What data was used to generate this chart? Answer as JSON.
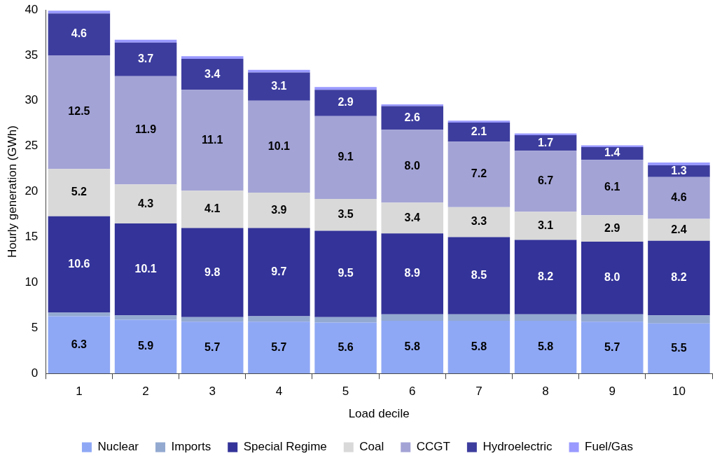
{
  "chart_data": {
    "type": "bar",
    "stacked": true,
    "xlabel": "Load decile",
    "ylabel": "Hourly generation (GWh)",
    "categories": [
      "1",
      "2",
      "3",
      "4",
      "5",
      "6",
      "7",
      "8",
      "9",
      "10"
    ],
    "ylim": [
      0,
      40
    ],
    "yticks": [
      0,
      5,
      10,
      15,
      20,
      25,
      30,
      35,
      40
    ],
    "grid": false,
    "legend": "bottom",
    "series": [
      {
        "name": "Nuclear",
        "color": "#8fa8f5",
        "values": [
          6.3,
          5.9,
          5.7,
          5.7,
          5.6,
          5.8,
          5.8,
          5.8,
          5.7,
          5.5
        ],
        "value_labels": [
          "6.3",
          "5.9",
          "5.7",
          "5.7",
          "5.6",
          "5.8",
          "5.8",
          "5.8",
          "5.7",
          "5.5"
        ]
      },
      {
        "name": "Imports",
        "color": "#93a9d0",
        "values": [
          0.4,
          0.5,
          0.5,
          0.6,
          0.6,
          0.7,
          0.7,
          0.7,
          0.8,
          0.9
        ]
      },
      {
        "name": "Special Regime",
        "color": "#333399",
        "values": [
          10.6,
          10.1,
          9.8,
          9.7,
          9.5,
          8.9,
          8.5,
          8.2,
          8.0,
          8.2
        ],
        "value_labels": [
          "10.6",
          "10.1",
          "9.8",
          "9.7",
          "9.5",
          "8.9",
          "8.5",
          "8.2",
          "8.0",
          "8.2"
        ]
      },
      {
        "name": "Coal",
        "color": "#d9d9d9",
        "values": [
          5.2,
          4.3,
          4.1,
          3.9,
          3.5,
          3.4,
          3.3,
          3.1,
          2.9,
          2.4
        ],
        "value_labels": [
          "5.2",
          "4.3",
          "4.1",
          "3.9",
          "3.5",
          "3.4",
          "3.3",
          "3.1",
          "2.9",
          "2.4"
        ]
      },
      {
        "name": "CCGT",
        "color": "#a3a3d6",
        "values": [
          12.5,
          11.9,
          11.1,
          10.1,
          9.1,
          8.0,
          7.2,
          6.7,
          6.1,
          4.6
        ],
        "value_labels": [
          "12.5",
          "11.9",
          "11.1",
          "10.1",
          "9.1",
          "8.0",
          "7.2",
          "6.7",
          "6.1",
          "4.6"
        ]
      },
      {
        "name": "Hydroelectric",
        "color": "#3d3d9e",
        "values": [
          4.6,
          3.7,
          3.4,
          3.1,
          2.9,
          2.6,
          2.1,
          1.7,
          1.4,
          1.3
        ],
        "value_labels": [
          "4.6",
          "3.7",
          "3.4",
          "3.1",
          "2.9",
          "2.6",
          "2.1",
          "1.7",
          "1.4",
          "1.3"
        ]
      },
      {
        "name": "Fuel/Gas",
        "color": "#9999ff",
        "values": [
          0.3,
          0.3,
          0.3,
          0.3,
          0.3,
          0.2,
          0.2,
          0.2,
          0.2,
          0.3
        ]
      }
    ]
  }
}
